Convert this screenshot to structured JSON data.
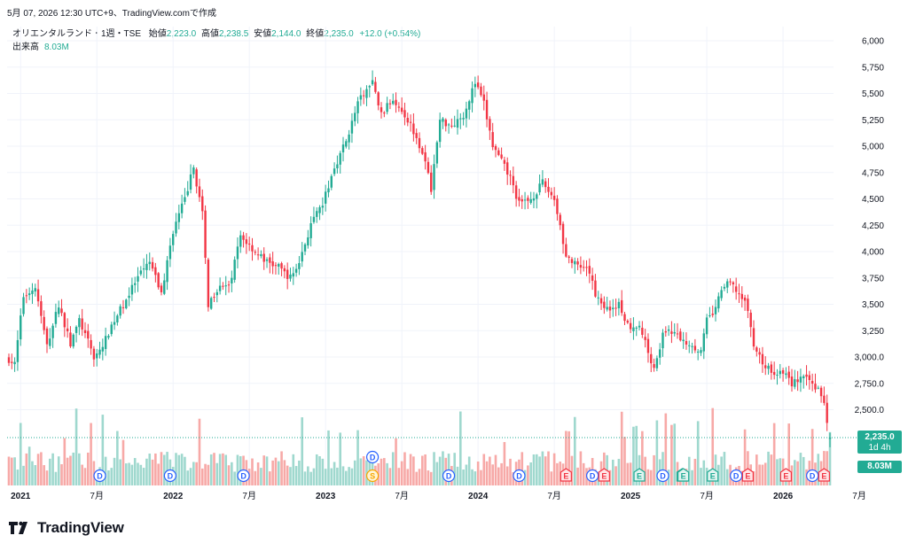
{
  "header": {
    "timestamp": "5月 07, 2026 12:30 UTC+9、TradingView.comで作成"
  },
  "legend": {
    "symbol": "オリエンタルランド・1週・TSE",
    "open_label": "始値",
    "open": "2,223.0",
    "high_label": "高値",
    "high": "2,238.5",
    "low_label": "安値",
    "low": "2,144.0",
    "close_label": "終値",
    "close": "2,235.0",
    "change": "+12.0 (+0.54%)",
    "volume_label": "出来高",
    "volume": "8.03M"
  },
  "price_tag": {
    "price": "2,235.0",
    "countdown": "1d 4h",
    "volume": "8.03M"
  },
  "logo": {
    "text": "TradingView"
  },
  "colors": {
    "up": "#22ab94",
    "down": "#f23645",
    "up_vol": "#9fd8ce",
    "down_vol": "#f7a9a7",
    "accent": "#2962ff"
  },
  "chart_data": {
    "type": "candlestick",
    "interval": "1週",
    "y_ticks": [
      "6,000",
      "5,750",
      "5,500",
      "5,250",
      "5,000",
      "4,750",
      "4,500",
      "4,250",
      "4,000",
      "3,750",
      "3,500",
      "3,250",
      "3,000.0",
      "2,750.0",
      "2,500.0"
    ],
    "y_tick_values": [
      6000,
      5750,
      5500,
      5250,
      5000,
      4750,
      4500,
      4250,
      4000,
      3750,
      3500,
      3250,
      3000,
      2750,
      2500
    ],
    "x_ticks": [
      {
        "label": "2021",
        "bold": true,
        "week": 4
      },
      {
        "label": "7月",
        "bold": false,
        "week": 30
      },
      {
        "label": "2022",
        "bold": true,
        "week": 56
      },
      {
        "label": "7月",
        "bold": false,
        "week": 82
      },
      {
        "label": "2023",
        "bold": true,
        "week": 108
      },
      {
        "label": "7月",
        "bold": false,
        "week": 134
      },
      {
        "label": "2024",
        "bold": true,
        "week": 160
      },
      {
        "label": "7月",
        "bold": false,
        "week": 186
      },
      {
        "label": "2025",
        "bold": true,
        "week": 212
      },
      {
        "label": "7月",
        "bold": false,
        "week": 238
      },
      {
        "label": "2026",
        "bold": true,
        "week": 264
      },
      {
        "label": "7月",
        "bold": false,
        "week": 290
      }
    ],
    "anchors": [
      [
        0,
        2980
      ],
      [
        2,
        2930
      ],
      [
        5,
        3580
      ],
      [
        9,
        3660
      ],
      [
        13,
        3100
      ],
      [
        17,
        3500
      ],
      [
        21,
        3120
      ],
      [
        24,
        3350
      ],
      [
        29,
        3000
      ],
      [
        32,
        3100
      ],
      [
        35,
        3300
      ],
      [
        39,
        3500
      ],
      [
        44,
        3750
      ],
      [
        48,
        3900
      ],
      [
        52,
        3600
      ],
      [
        56,
        4200
      ],
      [
        60,
        4500
      ],
      [
        63,
        4800
      ],
      [
        66,
        4350
      ],
      [
        68,
        3500
      ],
      [
        72,
        3700
      ],
      [
        75,
        3650
      ],
      [
        79,
        4150
      ],
      [
        84,
        4000
      ],
      [
        88,
        3900
      ],
      [
        92,
        3850
      ],
      [
        96,
        3750
      ],
      [
        99,
        3900
      ],
      [
        103,
        4250
      ],
      [
        107,
        4450
      ],
      [
        111,
        4800
      ],
      [
        115,
        5050
      ],
      [
        119,
        5400
      ],
      [
        121,
        5500
      ],
      [
        124,
        5600
      ],
      [
        127,
        5300
      ],
      [
        131,
        5450
      ],
      [
        134,
        5350
      ],
      [
        138,
        5150
      ],
      [
        141,
        4950
      ],
      [
        144,
        4600
      ],
      [
        147,
        5250
      ],
      [
        151,
        5200
      ],
      [
        155,
        5300
      ],
      [
        159,
        5600
      ],
      [
        162,
        5400
      ],
      [
        165,
        5000
      ],
      [
        168,
        4850
      ],
      [
        171,
        4700
      ],
      [
        174,
        4450
      ],
      [
        178,
        4500
      ],
      [
        182,
        4650
      ],
      [
        186,
        4500
      ],
      [
        188,
        4250
      ],
      [
        190,
        3950
      ],
      [
        194,
        3850
      ],
      [
        198,
        3800
      ],
      [
        200,
        3600
      ],
      [
        204,
        3450
      ],
      [
        208,
        3500
      ],
      [
        211,
        3300
      ],
      [
        215,
        3300
      ],
      [
        218,
        3050
      ],
      [
        220,
        2900
      ],
      [
        223,
        3200
      ],
      [
        226,
        3250
      ],
      [
        230,
        3150
      ],
      [
        233,
        3120
      ],
      [
        236,
        3050
      ],
      [
        238,
        3350
      ],
      [
        241,
        3450
      ],
      [
        243,
        3650
      ],
      [
        246,
        3700
      ],
      [
        249,
        3600
      ],
      [
        252,
        3450
      ],
      [
        254,
        3100
      ],
      [
        257,
        2950
      ],
      [
        260,
        2850
      ],
      [
        264,
        2860
      ],
      [
        267,
        2750
      ],
      [
        270,
        2800
      ],
      [
        273,
        2770
      ],
      [
        276,
        2700
      ],
      [
        278,
        2550
      ],
      [
        280,
        2235
      ]
    ],
    "volume_axis_max": 14,
    "volume_last": 8.03,
    "events": [
      {
        "label": "D",
        "type": "dividend",
        "week": 31
      },
      {
        "label": "D",
        "type": "dividend",
        "week": 55
      },
      {
        "label": "D",
        "type": "dividend",
        "week": 80
      },
      {
        "label": "D",
        "type": "dividend",
        "week": 124
      },
      {
        "label": "S",
        "type": "split",
        "week": 124
      },
      {
        "label": "D",
        "type": "dividend",
        "week": 150
      },
      {
        "label": "D",
        "type": "dividend",
        "week": 174
      },
      {
        "label": "E",
        "type": "earnings-down",
        "week": 190
      },
      {
        "label": "D",
        "type": "dividend",
        "week": 199
      },
      {
        "label": "E",
        "type": "earnings-down",
        "week": 203
      },
      {
        "label": "E",
        "type": "earnings-up",
        "week": 215
      },
      {
        "label": "D",
        "type": "dividend",
        "week": 223
      },
      {
        "label": "E",
        "type": "earnings-up",
        "week": 226
      },
      {
        "label": "E",
        "type": "earnings-up",
        "week": 230
      },
      {
        "label": "E",
        "type": "earnings-up",
        "week": 240
      },
      {
        "label": "D",
        "type": "dividend",
        "week": 248
      },
      {
        "label": "E",
        "type": "earnings-down",
        "week": 252
      },
      {
        "label": "E",
        "type": "earnings-down",
        "week": 265
      },
      {
        "label": "D",
        "type": "dividend",
        "week": 274
      },
      {
        "label": "E",
        "type": "earnings-down",
        "week": 278
      }
    ]
  }
}
